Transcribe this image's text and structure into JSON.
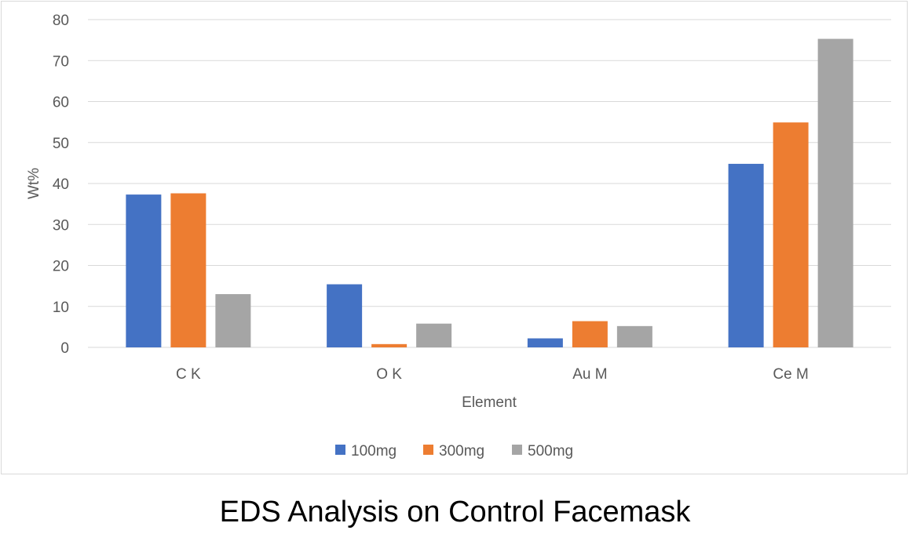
{
  "caption": "EDS Analysis on Control Facemask",
  "chart_data": {
    "type": "bar",
    "title": "",
    "xlabel": "Element",
    "ylabel": "Wt%",
    "ylim": [
      0,
      80
    ],
    "yticks": [
      0,
      10,
      20,
      30,
      40,
      50,
      60,
      70,
      80
    ],
    "grid": true,
    "legend_position": "bottom",
    "categories": [
      "C K",
      "O K",
      "Au M",
      "Ce M"
    ],
    "series": [
      {
        "name": "100mg",
        "color": "#4472C4",
        "values": [
          37.3,
          15.4,
          2.2,
          44.8
        ]
      },
      {
        "name": "300mg",
        "color": "#ED7D31",
        "values": [
          37.6,
          0.8,
          6.4,
          54.9
        ]
      },
      {
        "name": "500mg",
        "color": "#A5A5A5",
        "values": [
          13.0,
          5.8,
          5.2,
          75.3
        ]
      }
    ]
  }
}
